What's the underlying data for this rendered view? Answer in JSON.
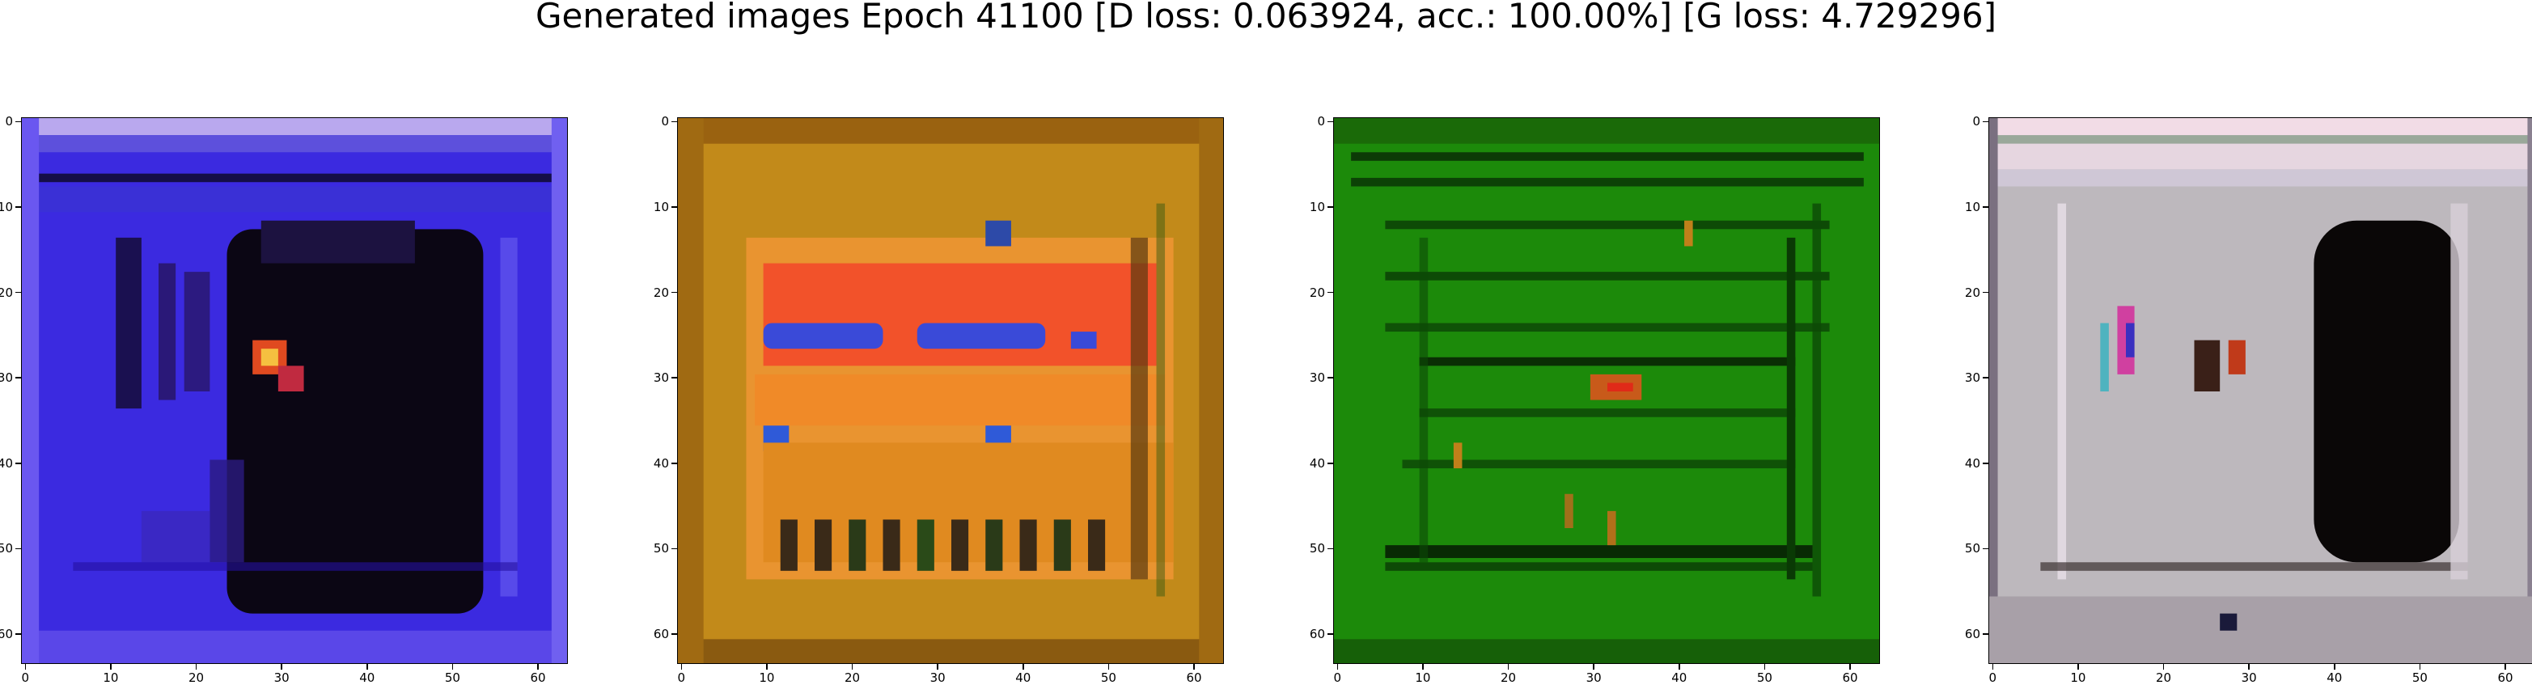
{
  "figure": {
    "title": "Generated images Epoch 41100 [D loss: 0.063924, acc.: 100.00%] [G loss: 4.729296]"
  },
  "axes_ticks": {
    "x": [
      "0",
      "10",
      "20",
      "30",
      "40",
      "50",
      "60"
    ],
    "y": [
      "0",
      "10",
      "20",
      "30",
      "40",
      "50",
      "60"
    ]
  },
  "images": [
    {
      "name": "generated-image-1",
      "dominant_color": "#3d28e6",
      "secondary_color": "#0a0612"
    },
    {
      "name": "generated-image-2",
      "dominant_color": "#c98a14",
      "secondary_color": "#f05a2a"
    },
    {
      "name": "generated-image-3",
      "dominant_color": "#1f8a0c",
      "secondary_color": "#0c3a06"
    },
    {
      "name": "generated-image-4",
      "dominant_color": "#c9c4cc",
      "secondary_color": "#0a0707"
    }
  ]
}
